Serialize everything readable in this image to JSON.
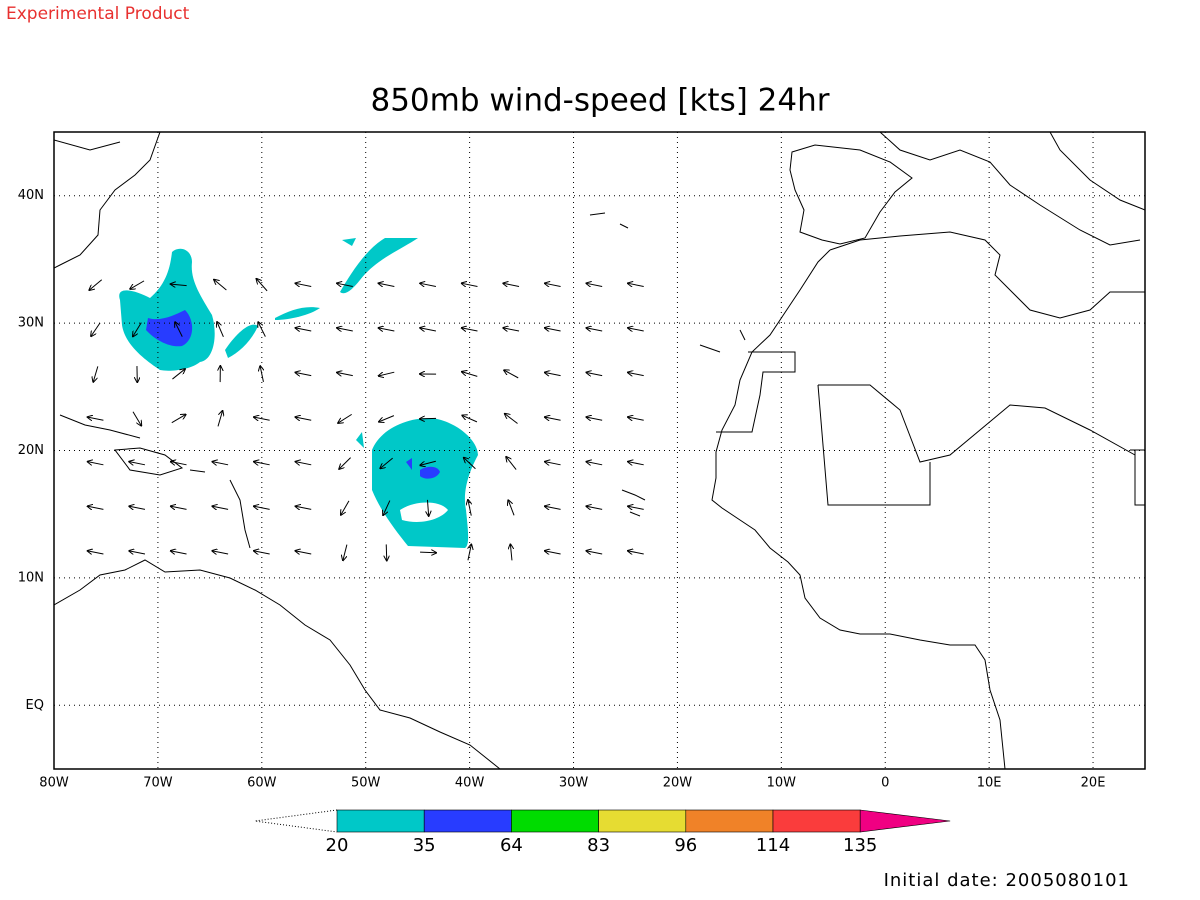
{
  "header": {
    "label": "Experimental Product",
    "color": "#e8302f"
  },
  "map": {
    "title": "850mb wind-speed [kts] 24hr",
    "lon_range": [
      -80,
      25
    ],
    "lat_range": [
      -5,
      45
    ],
    "lon_ticks": [
      {
        "value": -80,
        "label": "80W"
      },
      {
        "value": -70,
        "label": "70W"
      },
      {
        "value": -60,
        "label": "60W"
      },
      {
        "value": -50,
        "label": "50W"
      },
      {
        "value": -40,
        "label": "40W"
      },
      {
        "value": -30,
        "label": "30W"
      },
      {
        "value": -20,
        "label": "20W"
      },
      {
        "value": -10,
        "label": "10W"
      },
      {
        "value": 0,
        "label": "0"
      },
      {
        "value": 10,
        "label": "10E"
      },
      {
        "value": 20,
        "label": "20E"
      }
    ],
    "lat_ticks": [
      {
        "value": 40,
        "label": "40N"
      },
      {
        "value": 30,
        "label": "30N"
      },
      {
        "value": 20,
        "label": "20N"
      },
      {
        "value": 10,
        "label": "10N"
      },
      {
        "value": 0,
        "label": "EQ"
      }
    ]
  },
  "colorbar": {
    "levels": [
      20,
      35,
      64,
      83,
      96,
      114,
      135
    ],
    "colors": [
      "#00c8c8",
      "#283cff",
      "#00dc00",
      "#e6dc32",
      "#f08228",
      "#fa3c3c",
      "#f00082"
    ]
  },
  "footer": {
    "initial_date": "Initial date: 2005080101"
  }
}
